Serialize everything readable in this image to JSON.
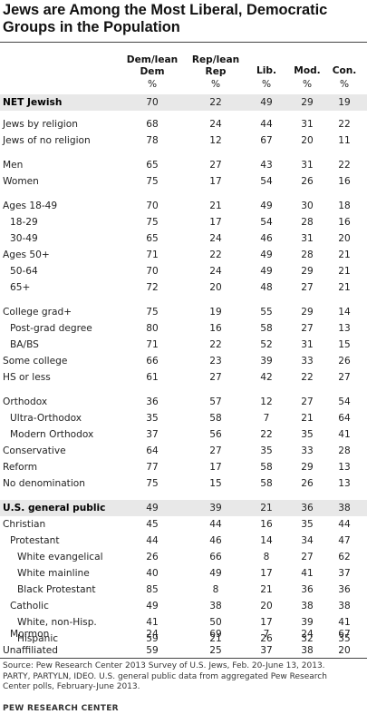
{
  "title": "Jews are Among the Most Liberal, Democratic Groups in the Population",
  "chart_data": {
    "type": "table",
    "columns": [
      "Dem/lean Dem",
      "Rep/lean Rep",
      "Lib.",
      "Mod.",
      "Con."
    ],
    "unit_row": [
      "%",
      "%",
      "%",
      "%",
      "%"
    ],
    "rows": [
      {
        "label": "NET Jewish",
        "indent": 0,
        "bold": true,
        "values": [
          70,
          22,
          49,
          29,
          19
        ]
      },
      {
        "label": "Jews by religion",
        "indent": 0,
        "bold": false,
        "values": [
          68,
          24,
          44,
          31,
          22
        ]
      },
      {
        "label": "Jews of no religion",
        "indent": 0,
        "bold": false,
        "values": [
          78,
          12,
          67,
          20,
          11
        ]
      },
      {
        "label": "Men",
        "indent": 0,
        "bold": false,
        "values": [
          65,
          27,
          43,
          31,
          22
        ]
      },
      {
        "label": "Women",
        "indent": 0,
        "bold": false,
        "values": [
          75,
          17,
          54,
          26,
          16
        ]
      },
      {
        "label": "Ages 18-49",
        "indent": 0,
        "bold": false,
        "values": [
          70,
          21,
          49,
          30,
          18
        ]
      },
      {
        "label": "18-29",
        "indent": 1,
        "bold": false,
        "values": [
          75,
          17,
          54,
          28,
          16
        ]
      },
      {
        "label": "30-49",
        "indent": 1,
        "bold": false,
        "values": [
          65,
          24,
          46,
          31,
          20
        ]
      },
      {
        "label": "Ages 50+",
        "indent": 0,
        "bold": false,
        "values": [
          71,
          22,
          49,
          28,
          21
        ]
      },
      {
        "label": "50-64",
        "indent": 1,
        "bold": false,
        "values": [
          70,
          24,
          49,
          29,
          21
        ]
      },
      {
        "label": "65+",
        "indent": 1,
        "bold": false,
        "values": [
          72,
          20,
          48,
          27,
          21
        ]
      },
      {
        "label": "College grad+",
        "indent": 0,
        "bold": false,
        "values": [
          75,
          19,
          55,
          29,
          14
        ]
      },
      {
        "label": "Post-grad degree",
        "indent": 1,
        "bold": false,
        "values": [
          80,
          16,
          58,
          27,
          13
        ]
      },
      {
        "label": "BA/BS",
        "indent": 1,
        "bold": false,
        "values": [
          71,
          22,
          52,
          31,
          15
        ]
      },
      {
        "label": "Some college",
        "indent": 0,
        "bold": false,
        "values": [
          66,
          23,
          39,
          33,
          26
        ]
      },
      {
        "label": "HS or less",
        "indent": 0,
        "bold": false,
        "values": [
          61,
          27,
          42,
          22,
          27
        ]
      },
      {
        "label": "Orthodox",
        "indent": 0,
        "bold": false,
        "values": [
          36,
          57,
          12,
          27,
          54
        ]
      },
      {
        "label": "Ultra-Orthodox",
        "indent": 1,
        "bold": false,
        "values": [
          35,
          58,
          7,
          21,
          64
        ]
      },
      {
        "label": "Modern Orthodox",
        "indent": 1,
        "bold": false,
        "values": [
          37,
          56,
          22,
          35,
          41
        ]
      },
      {
        "label": "Conservative",
        "indent": 0,
        "bold": false,
        "values": [
          64,
          27,
          35,
          33,
          28
        ]
      },
      {
        "label": "Reform",
        "indent": 0,
        "bold": false,
        "values": [
          77,
          17,
          58,
          29,
          13
        ]
      },
      {
        "label": "No denomination",
        "indent": 0,
        "bold": false,
        "values": [
          75,
          15,
          58,
          26,
          13
        ]
      },
      {
        "label": "U.S. general public",
        "indent": 0,
        "bold": true,
        "values": [
          49,
          39,
          21,
          36,
          38
        ]
      },
      {
        "label": "Christian",
        "indent": 0,
        "bold": false,
        "values": [
          45,
          44,
          16,
          35,
          44
        ]
      },
      {
        "label": "Protestant",
        "indent": 1,
        "bold": false,
        "values": [
          44,
          46,
          14,
          34,
          47
        ]
      },
      {
        "label": "White evangelical",
        "indent": 2,
        "bold": false,
        "values": [
          26,
          66,
          8,
          27,
          62
        ]
      },
      {
        "label": "White mainline",
        "indent": 2,
        "bold": false,
        "values": [
          40,
          49,
          17,
          41,
          37
        ]
      },
      {
        "label": "Black Protestant",
        "indent": 2,
        "bold": false,
        "values": [
          85,
          8,
          21,
          36,
          36
        ]
      },
      {
        "label": "Catholic",
        "indent": 1,
        "bold": false,
        "values": [
          49,
          38,
          20,
          38,
          38
        ]
      },
      {
        "label": "White, non-Hisp.",
        "indent": 2,
        "bold": false,
        "values": [
          41,
          50,
          17,
          39,
          41
        ]
      },
      {
        "label": "Hispanic",
        "indent": 2,
        "bold": false,
        "values": [
          59,
          21,
          26,
          32,
          35
        ]
      },
      {
        "label": "Mormon",
        "indent": 1,
        "bold": false,
        "values": [
          24,
          69,
          7,
          24,
          67
        ]
      },
      {
        "label": "Unaffiliated",
        "indent": 0,
        "bold": false,
        "values": [
          59,
          25,
          37,
          38,
          20
        ]
      }
    ]
  },
  "source_lines": [
    "Source: Pew Research Center 2013 Survey of U.S. Jews, Feb. 20-June 13, 2013.",
    "PARTY, PARTYLN, IDEO. U.S. general public data from aggregated Pew Research",
    "Center polls, February-June 2013."
  ],
  "credit": "PEW RESEARCH CENTER",
  "colors": {
    "shade": "#e8e8e8",
    "rule": "#444444",
    "text": "#222222"
  }
}
